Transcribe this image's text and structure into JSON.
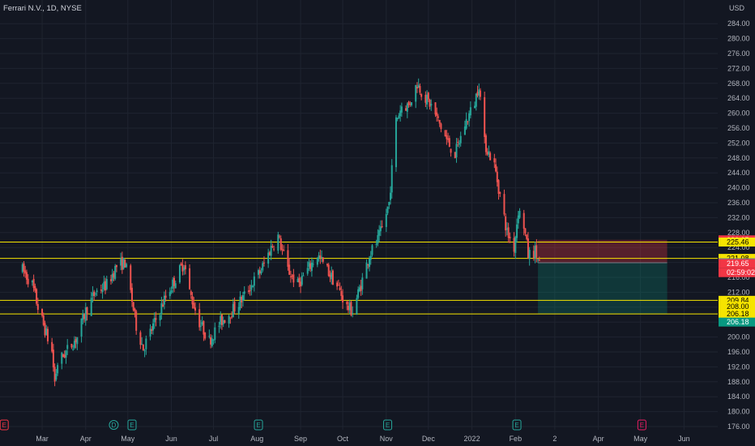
{
  "header": {
    "title": "Ferrari N.V., 1D, NYSE",
    "currency": "USD"
  },
  "chart_data": {
    "type": "candlestick",
    "title": "Ferrari N.V., 1D, NYSE",
    "ylabel": "USD",
    "ylim": [
      174,
      289
    ],
    "y_ticks": [
      "176.00",
      "180.00",
      "184.00",
      "188.00",
      "192.00",
      "196.00",
      "200.00",
      "204.00",
      "208.00",
      "212.00",
      "216.00",
      "220.00",
      "224.00",
      "228.00",
      "232.00",
      "236.00",
      "240.00",
      "244.00",
      "248.00",
      "252.00",
      "256.00",
      "260.00",
      "264.00",
      "268.00",
      "272.00",
      "276.00",
      "280.00",
      "284.00"
    ],
    "x_labels": [
      "Mar",
      "Apr",
      "May",
      "Jun",
      "Jul",
      "Aug",
      "Sep",
      "Oct",
      "Nov",
      "Dec",
      "2022",
      "Feb",
      "2",
      "Apr",
      "May",
      "Jun"
    ],
    "price_path": [
      [
        "2021-02-15",
        218
      ],
      [
        "2021-02-22",
        214
      ],
      [
        "2021-02-26",
        208
      ],
      [
        "2021-03-03",
        202
      ],
      [
        "2021-03-08",
        196
      ],
      [
        "2021-03-10",
        188
      ],
      [
        "2021-03-12",
        193
      ],
      [
        "2021-03-18",
        196
      ],
      [
        "2021-03-26",
        200
      ],
      [
        "2021-04-01",
        207
      ],
      [
        "2021-04-08",
        212
      ],
      [
        "2021-04-16",
        214
      ],
      [
        "2021-04-23",
        219
      ],
      [
        "2021-04-29",
        220
      ],
      [
        "2021-05-03",
        212
      ],
      [
        "2021-05-07",
        203
      ],
      [
        "2021-05-12",
        197
      ],
      [
        "2021-05-18",
        202
      ],
      [
        "2021-05-27",
        210
      ],
      [
        "2021-06-03",
        215
      ],
      [
        "2021-06-10",
        220
      ],
      [
        "2021-06-14",
        212
      ],
      [
        "2021-06-21",
        204
      ],
      [
        "2021-06-28",
        199
      ],
      [
        "2021-07-06",
        204
      ],
      [
        "2021-07-14",
        207
      ],
      [
        "2021-07-21",
        210
      ],
      [
        "2021-07-28",
        214
      ],
      [
        "2021-08-04",
        218
      ],
      [
        "2021-08-11",
        224
      ],
      [
        "2021-08-16",
        227
      ],
      [
        "2021-08-23",
        218
      ],
      [
        "2021-08-30",
        214
      ],
      [
        "2021-09-06",
        218
      ],
      [
        "2021-09-13",
        222
      ],
      [
        "2021-09-20",
        218
      ],
      [
        "2021-09-28",
        213
      ],
      [
        "2021-10-04",
        208
      ],
      [
        "2021-10-08",
        207
      ],
      [
        "2021-10-14",
        214
      ],
      [
        "2021-10-20",
        222
      ],
      [
        "2021-10-26",
        226
      ],
      [
        "2021-10-29",
        229
      ],
      [
        "2021-11-03",
        236
      ],
      [
        "2021-11-08",
        258
      ],
      [
        "2021-11-12",
        262
      ],
      [
        "2021-11-17",
        262
      ],
      [
        "2021-11-23",
        268
      ],
      [
        "2021-11-29",
        264
      ],
      [
        "2021-12-03",
        262
      ],
      [
        "2021-12-09",
        257
      ],
      [
        "2021-12-15",
        252
      ],
      [
        "2021-12-20",
        249
      ],
      [
        "2021-12-27",
        257
      ],
      [
        "2022-01-03",
        263
      ],
      [
        "2022-01-06",
        268
      ],
      [
        "2022-01-10",
        252
      ],
      [
        "2022-01-17",
        246
      ],
      [
        "2022-01-21",
        238
      ],
      [
        "2022-01-26",
        228
      ],
      [
        "2022-01-31",
        224
      ],
      [
        "2022-02-03",
        234
      ],
      [
        "2022-02-07",
        230
      ],
      [
        "2022-02-10",
        222
      ],
      [
        "2022-02-15",
        223
      ],
      [
        "2022-02-18",
        219.65
      ]
    ],
    "horizontal_lines": [
      225.46,
      221.08,
      209.84,
      206.18
    ],
    "position": {
      "entry": 219.91,
      "stop": 226.05,
      "target": 206.18
    },
    "price_tags": [
      {
        "label": "226.05",
        "value": 226.05,
        "bg": "#f23645",
        "fg": "#ffffff"
      },
      {
        "label": "225.46",
        "value": 225.46,
        "bg": "#f6e400",
        "fg": "#000000"
      },
      {
        "label": "221.08",
        "value": 221.08,
        "bg": "#f6e400",
        "fg": "#000000"
      },
      {
        "label": "219.91",
        "value": 219.91,
        "bg": "#787b86",
        "fg": "#ffffff"
      },
      {
        "label": "219.65",
        "value": 219.65,
        "bg": "#f23645",
        "fg": "#ffffff"
      },
      {
        "label": "02:59:02",
        "value": 219.65,
        "bg": "#f23645",
        "fg": "#ffffff",
        "sub": true
      },
      {
        "label": "209.84",
        "value": 209.84,
        "bg": "#f6e400",
        "fg": "#000000"
      },
      {
        "label": "208.00",
        "value": 208.0,
        "bg": "#f6e400",
        "fg": "#000000"
      },
      {
        "label": "206.18",
        "value": 206.18,
        "bg": "#f6e400",
        "fg": "#000000"
      },
      {
        "label": "206.18",
        "value": 206.18,
        "bg": "#089981",
        "fg": "#ffffff"
      }
    ],
    "events": [
      {
        "label": "E",
        "date": "2021-02-02",
        "color": "#f23645"
      },
      {
        "label": "D",
        "date": "2021-04-21",
        "color": "#26a69a"
      },
      {
        "label": "E",
        "date": "2021-05-04",
        "color": "#26a69a"
      },
      {
        "label": "E",
        "date": "2021-08-02",
        "color": "#26a69a"
      },
      {
        "label": "E",
        "date": "2021-11-02",
        "color": "#26a69a"
      },
      {
        "label": "E",
        "date": "2022-02-02",
        "color": "#26a69a"
      },
      {
        "label": "E",
        "date": "2022-05-02",
        "color": "#e91e63"
      }
    ],
    "colors": {
      "up": "#26a69a",
      "down": "#ef5350",
      "line": "#f6e400",
      "stop_zone": "#f23645",
      "target_zone": "#089981"
    },
    "grid": true
  }
}
